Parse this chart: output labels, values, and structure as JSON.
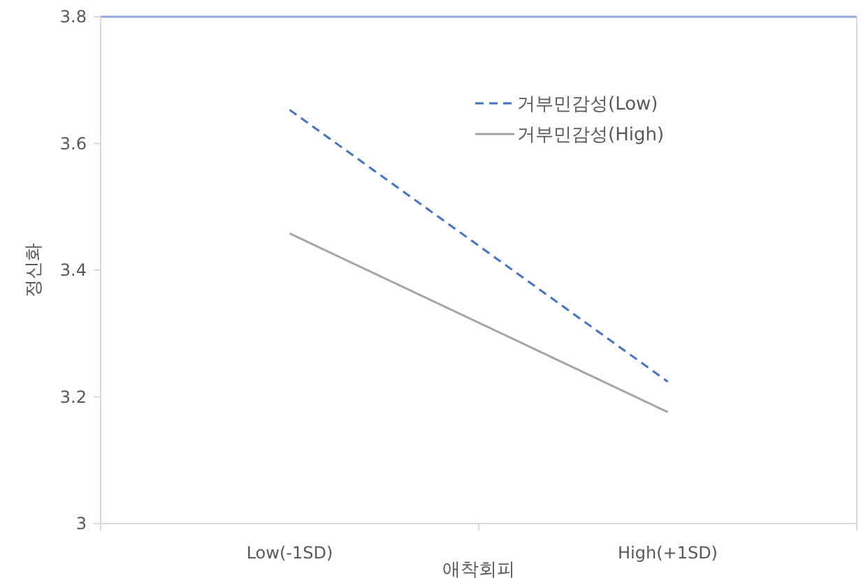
{
  "chart_data": {
    "type": "line",
    "xlabel": "애착회피",
    "ylabel": "정신화",
    "categories": [
      "Low(-1SD)",
      "High(+1SD)"
    ],
    "series": [
      {
        "name": "거부민감성(Low)",
        "color": "#4472c4",
        "values": [
          3.653,
          3.224
        ],
        "line_style": "dashed"
      },
      {
        "name": "거부민감성(High)",
        "color": "#a5a5a5",
        "values": [
          3.458,
          3.176
        ],
        "line_style": "solid"
      }
    ],
    "ylim": [
      3,
      3.8
    ],
    "yticks": [
      3,
      3.2,
      3.4,
      3.6,
      3.8
    ],
    "legend": "top right",
    "marker": "none",
    "grid": false
  }
}
